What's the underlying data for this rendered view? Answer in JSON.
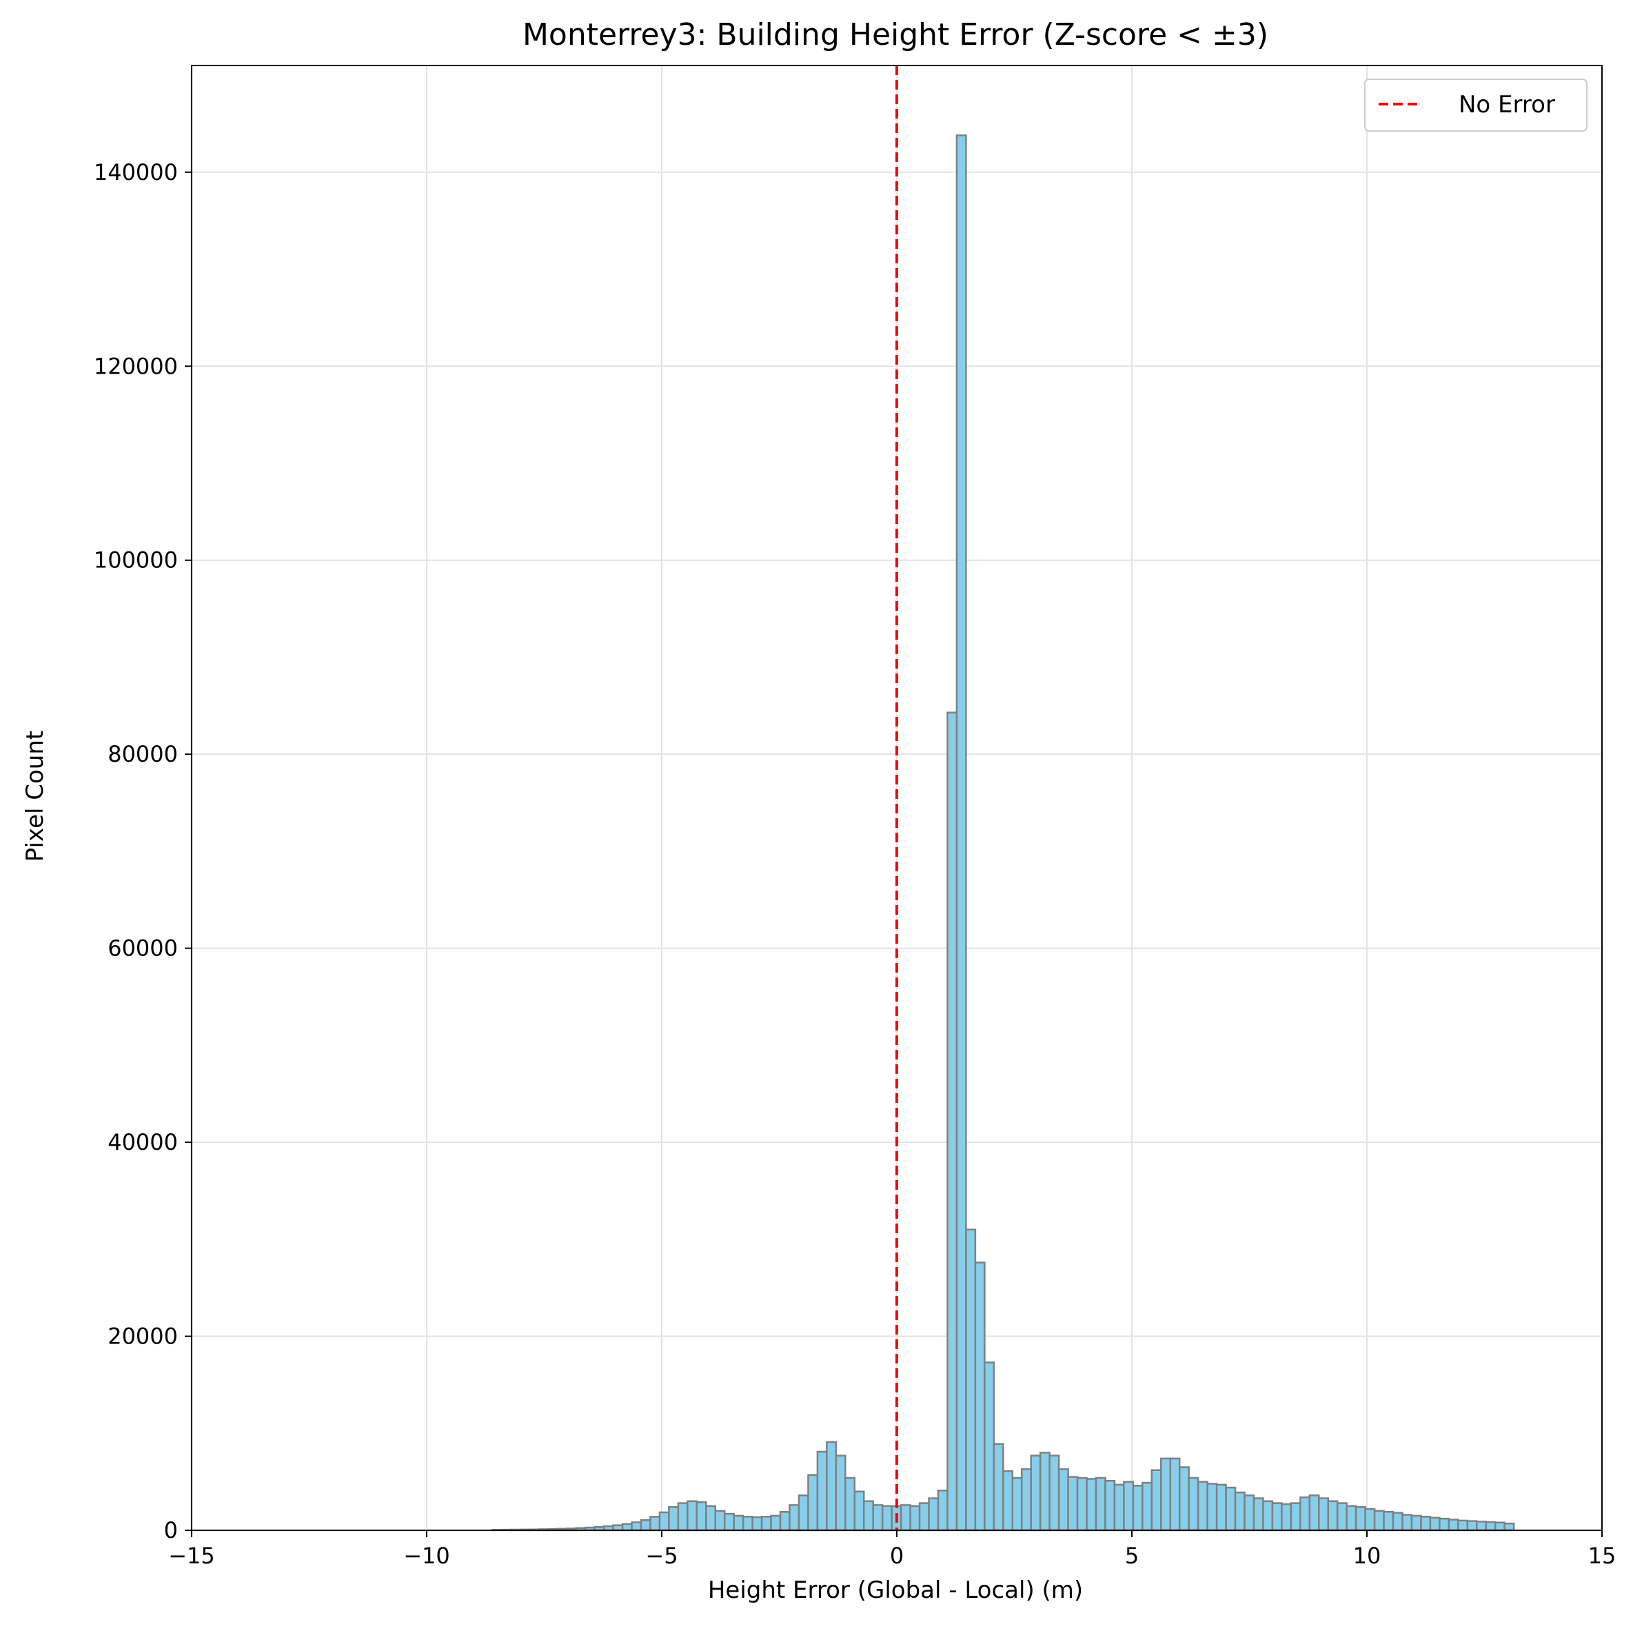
{
  "chart_data": {
    "type": "bar",
    "title": "Monterrey3: Building Height Error (Z-score < ±3)",
    "xlabel": "Height Error (Global - Local) (m)",
    "ylabel": "Pixel Count",
    "xlim": [
      -15,
      15
    ],
    "ylim": [
      0,
      151000
    ],
    "xticks": [
      -15,
      -10,
      -5,
      0,
      5,
      10,
      15
    ],
    "xtick_labels": [
      "−15",
      "−10",
      "−5",
      "0",
      "5",
      "10",
      "15"
    ],
    "yticks": [
      0,
      20000,
      40000,
      60000,
      80000,
      100000,
      120000,
      140000
    ],
    "ytick_labels": [
      "0",
      "20000",
      "40000",
      "60000",
      "80000",
      "100000",
      "120000",
      "140000"
    ],
    "grid": true,
    "bin_width": 0.1975,
    "bins_start": -8.6,
    "series": [
      {
        "bin_start": -8.6,
        "bin_width": 0.1975,
        "color": "#87CEEB",
        "edge_color": "#808080",
        "values": [
          50,
          60,
          70,
          80,
          90,
          110,
          130,
          160,
          190,
          230,
          280,
          340,
          420,
          520,
          650,
          820,
          1050,
          1400,
          1850,
          2400,
          2800,
          3000,
          2900,
          2500,
          2000,
          1700,
          1500,
          1400,
          1350,
          1400,
          1500,
          1900,
          2600,
          3600,
          5700,
          8100,
          9100,
          7700,
          5400,
          4000,
          3000,
          2600,
          2500,
          2500,
          2600,
          2500,
          2800,
          3300,
          4100,
          84300,
          143800,
          31000,
          27600,
          17300,
          8900,
          6100,
          5400,
          6300,
          7700,
          8000,
          7700,
          6300,
          5500,
          5400,
          5300,
          5400,
          5100,
          4700,
          5000,
          4600,
          4900,
          6200,
          7400,
          7400,
          6500,
          5400,
          5000,
          4800,
          4700,
          4400,
          3900,
          3600,
          3300,
          3000,
          2800,
          2700,
          2800,
          3400,
          3600,
          3300,
          3000,
          2800,
          2500,
          2400,
          2200,
          2000,
          1900,
          1800,
          1600,
          1500,
          1400,
          1300,
          1200,
          1100,
          1000,
          950,
          900,
          850,
          800,
          700
        ]
      }
    ],
    "reference_line": {
      "x": 0,
      "color": "#ff0000",
      "style": "dashed",
      "label": "No Error"
    },
    "legend": {
      "position": "top-right",
      "entries": [
        "No Error"
      ]
    }
  }
}
